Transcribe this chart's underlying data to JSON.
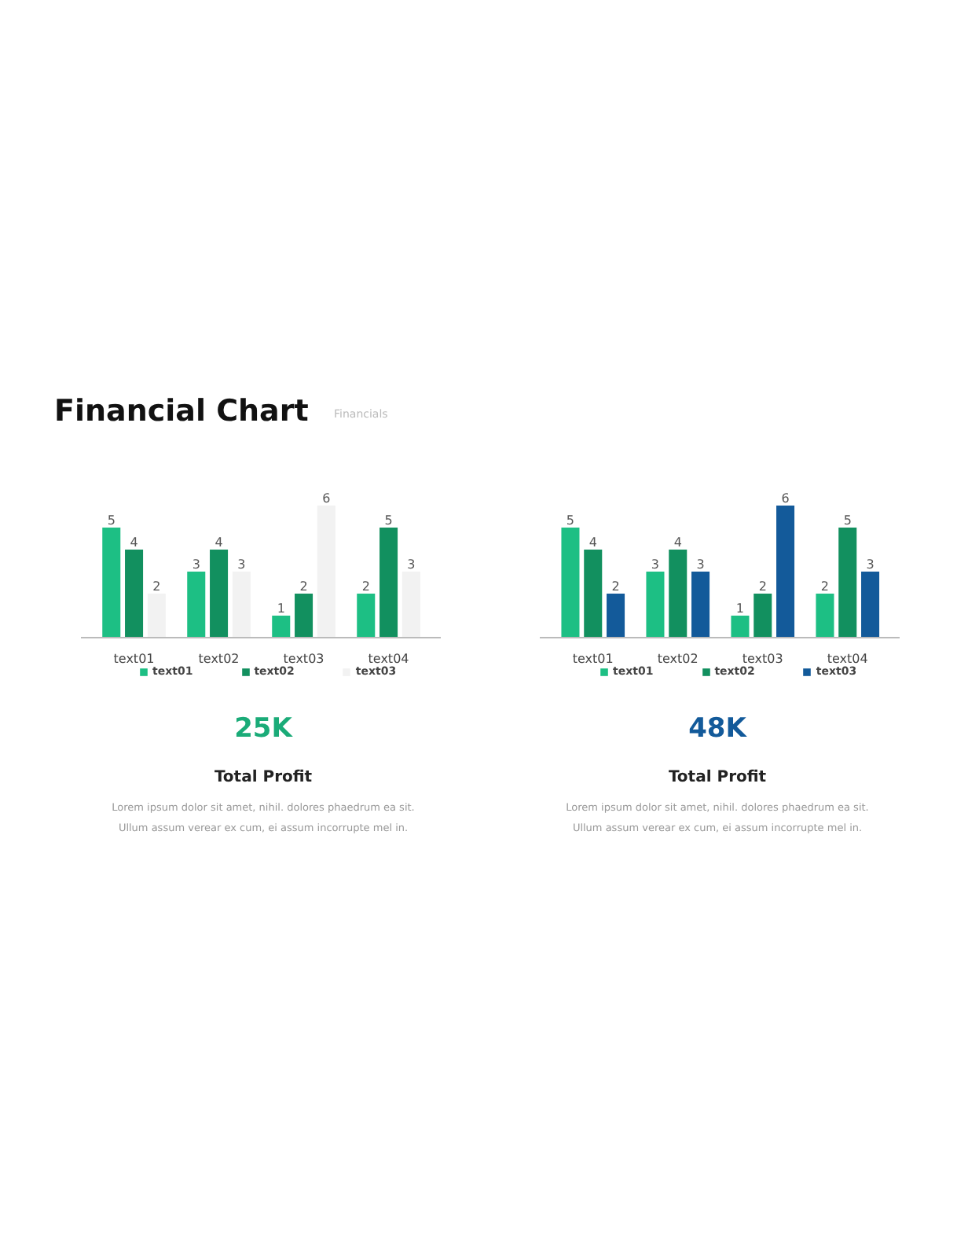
{
  "chart_data": [
    {
      "type": "bar",
      "title": "Financial Chart",
      "subtitle": "Financials",
      "categories": [
        "text01",
        "text02",
        "text03",
        "text04"
      ],
      "series": [
        {
          "name": "text01",
          "color": "#1dbf84",
          "values": [
            5,
            3,
            1,
            2
          ]
        },
        {
          "name": "text02",
          "color": "#12905f",
          "values": [
            4,
            4,
            2,
            5
          ]
        },
        {
          "name": "text03",
          "color": "#f2f2f2",
          "values": [
            2,
            3,
            6,
            3
          ]
        }
      ],
      "data_labels": true,
      "legend": "bottom",
      "grid": false,
      "tick_labels": "x",
      "annotations": [
        "25K",
        "Total Profit",
        "Lorem ipsum dolor sit amet, nihil. dolores phaedrum ea sit.",
        "Ullum assum verear ex cum, ei assum incorrupte mel in."
      ]
    },
    {
      "type": "bar",
      "categories": [
        "text01",
        "text02",
        "text03",
        "text04"
      ],
      "series": [
        {
          "name": "text01",
          "color": "#1dbf84",
          "values": [
            5,
            3,
            1,
            2
          ]
        },
        {
          "name": "text02",
          "color": "#12905f",
          "values": [
            4,
            4,
            2,
            5
          ]
        },
        {
          "name": "text03",
          "color": "#135a9a",
          "values": [
            2,
            3,
            6,
            3
          ]
        }
      ],
      "data_labels": true,
      "legend": "bottom",
      "grid": false,
      "tick_labels": "x",
      "annotations": [
        "48K",
        "Total Profit",
        "Lorem ipsum dolor sit amet, nihil. dolores phaedrum ea sit.",
        "Ullum assum verear ex cum, ei assum incorrupte mel in."
      ]
    }
  ]
}
